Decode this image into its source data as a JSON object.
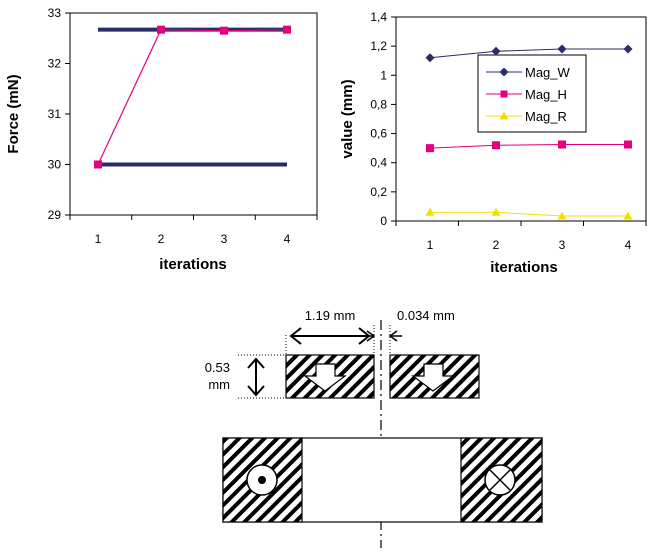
{
  "chart_data": [
    {
      "type": "line",
      "title": "",
      "xlabel": "iterations",
      "ylabel": "Force (mN)",
      "categories": [
        "1",
        "2",
        "3",
        "4"
      ],
      "ylim": [
        29,
        33
      ],
      "yticks": [
        "29",
        "30",
        "31",
        "32",
        "33"
      ],
      "grid": false,
      "legend": "none",
      "series": [
        {
          "values": [
            32.67,
            32.67,
            32.67,
            32.67
          ],
          "color": "#2b2b6b"
        },
        {
          "values": [
            30.0,
            30.0,
            30.0,
            30.0
          ],
          "color": "#2b2b6b"
        },
        {
          "values": [
            30.0,
            32.67,
            32.65,
            32.67
          ],
          "color": "#e6007e"
        }
      ]
    },
    {
      "type": "line",
      "title": "",
      "xlabel": "iterations",
      "ylabel": "value (mm)",
      "categories": [
        "1",
        "2",
        "3",
        "4"
      ],
      "ylim": [
        0,
        1.4
      ],
      "yticks": [
        "0",
        "0,2",
        "0,4",
        "0,6",
        "0,8",
        "1",
        "1,2",
        "1,4"
      ],
      "grid": false,
      "legend": "top-right",
      "series": [
        {
          "name": "Mag_W",
          "values": [
            1.12,
            1.165,
            1.18,
            1.18
          ],
          "color": "#2b2b6b"
        },
        {
          "name": "Mag_H",
          "values": [
            0.5,
            0.52,
            0.525,
            0.525
          ],
          "color": "#e6007e"
        },
        {
          "name": "Mag_R",
          "values": [
            0.06,
            0.06,
            0.034,
            0.034
          ],
          "color": "#f0e000"
        }
      ]
    }
  ],
  "diagram": {
    "width_label": "1.19 mm",
    "gap_label": "0.034 mm",
    "height_label_line1": "0.53",
    "height_label_line2": "mm"
  }
}
